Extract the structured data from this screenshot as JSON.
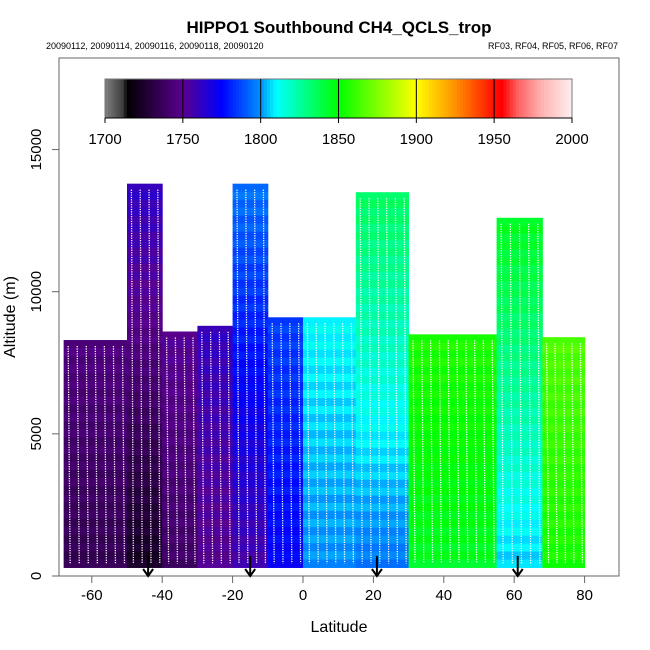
{
  "chart_data": {
    "type": "heatmap",
    "title": "HIPPO1 Southbound CH4_QCLS_trop",
    "subtitle_left": "20090112, 20090114, 20090116, 20090118, 20090120",
    "subtitle_right": "RF03, RF04, RF05, RF06, RF07",
    "xlabel": "Latitude",
    "ylabel": "Altitude (m)",
    "xlim": [
      -70,
      90
    ],
    "ylim": [
      0,
      18000
    ],
    "x_ticks": [
      -60,
      -40,
      -20,
      0,
      20,
      40,
      60,
      80
    ],
    "y_ticks": [
      0,
      5000,
      10000,
      15000
    ],
    "colorbar": {
      "range": [
        1700,
        2000
      ],
      "ticks": [
        1700,
        1750,
        1800,
        1850,
        1900,
        1950,
        2000
      ],
      "stops": [
        {
          "v": 1700,
          "c": "#808080"
        },
        {
          "v": 1712,
          "c": "#3a3a3a"
        },
        {
          "v": 1714,
          "c": "#000000"
        },
        {
          "v": 1750,
          "c": "#5a0090"
        },
        {
          "v": 1775,
          "c": "#0000ff"
        },
        {
          "v": 1800,
          "c": "#0090ff"
        },
        {
          "v": 1810,
          "c": "#00ffff"
        },
        {
          "v": 1825,
          "c": "#00ffa0"
        },
        {
          "v": 1850,
          "c": "#00ff00"
        },
        {
          "v": 1875,
          "c": "#80ff00"
        },
        {
          "v": 1900,
          "c": "#ffff00"
        },
        {
          "v": 1925,
          "c": "#ff9000"
        },
        {
          "v": 1950,
          "c": "#ff1000"
        },
        {
          "v": 1955,
          "c": "#ff0000"
        },
        {
          "v": 1965,
          "c": "#ff6060"
        },
        {
          "v": 1980,
          "c": "#ffb0b0"
        },
        {
          "v": 2000,
          "c": "#fff0f0"
        }
      ]
    },
    "flight_markers_lat": [
      -44,
      -15,
      21,
      61
    ],
    "profile_regions": [
      {
        "lat": [
          -68,
          -50
        ],
        "alt_top": 8300,
        "ch4": 1740
      },
      {
        "lat": [
          -50,
          -40
        ],
        "alt_top": 13800,
        "ch4": 1742
      },
      {
        "lat": [
          -40,
          -30
        ],
        "alt_top": 8600,
        "ch4": 1745
      },
      {
        "lat": [
          -30,
          -20
        ],
        "alt_top": 8800,
        "ch4": 1755
      },
      {
        "lat": [
          -20,
          -10
        ],
        "alt_top": 13800,
        "ch4": 1775
      },
      {
        "lat": [
          -10,
          0
        ],
        "alt_top": 9100,
        "ch4": 1780
      },
      {
        "lat": [
          0,
          15
        ],
        "alt_top": 9100,
        "ch4": 1805
      },
      {
        "lat": [
          15,
          30
        ],
        "alt_top": 13500,
        "ch4": 1815
      },
      {
        "lat": [
          30,
          55
        ],
        "alt_top": 8500,
        "ch4": 1850
      },
      {
        "lat": [
          55,
          68
        ],
        "alt_top": 12600,
        "ch4": 1825
      },
      {
        "lat": [
          68,
          80
        ],
        "alt_top": 8400,
        "ch4": 1860
      }
    ]
  }
}
